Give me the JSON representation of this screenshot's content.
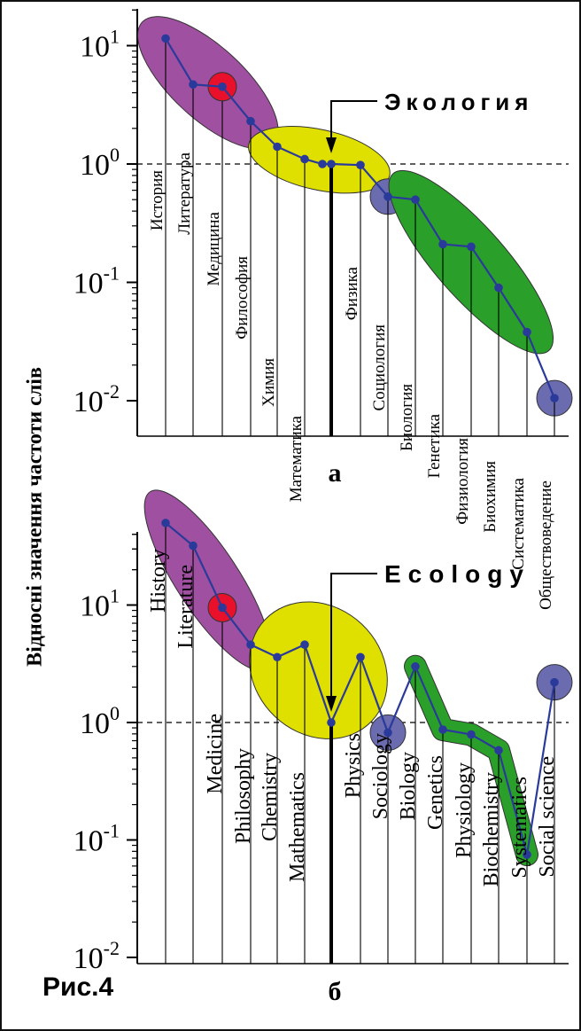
{
  "figure": {
    "caption": "Рис.4",
    "ylabel": "Відносні значення частоти слів"
  },
  "chart_data": [
    {
      "type": "line",
      "panel_label": "а",
      "ylabel": "Відносні значення частоти слів",
      "yscale": "log",
      "ylim": [
        0.0085,
        25
      ],
      "yticks": [
        10,
        1,
        0.1,
        0.01
      ],
      "ytick_labels": [
        {
          "base": "10",
          "exp": "1"
        },
        {
          "base": "10",
          "exp": "0"
        },
        {
          "base": "10",
          "exp": "-1"
        },
        {
          "base": "10",
          "exp": "-2"
        }
      ],
      "reference_line": 1,
      "highlight_label": "Экология",
      "highlight_category": "Экология",
      "categories": [
        "История",
        "Литература",
        "Медицина",
        "Философия",
        "Химия",
        "Математика",
        "",
        "Экология",
        "Физика",
        "Социология",
        "Биология",
        "Генетика",
        "Физиология",
        "Биохимия",
        "Систематика",
        "Обществоведение"
      ],
      "tick_labels": [
        "История",
        "Литература",
        "Медицина",
        "Философия",
        "Химия",
        "Математика",
        "",
        "",
        "Физика",
        "Социология",
        "Биология",
        "Генетика",
        "Физиология",
        "Биохимия",
        "Систематика",
        "Обществоведение"
      ],
      "label_levels": [
        1,
        2,
        3,
        4,
        5,
        6,
        0,
        0,
        8,
        9,
        10,
        11,
        12,
        13,
        14,
        15
      ],
      "values": [
        11.5,
        4.7,
        4.5,
        2.3,
        1.4,
        1.1,
        1.0,
        1.0,
        0.98,
        0.53,
        0.5,
        0.21,
        0.2,
        0.09,
        0.038,
        0.0105
      ],
      "clusters": [
        {
          "color": "#a050a0",
          "members": [
            0,
            1,
            2,
            3
          ]
        },
        {
          "color": "#e0e000",
          "members": [
            4,
            5,
            6,
            7,
            8
          ]
        },
        {
          "color": "#6b6bb0",
          "members": [
            9
          ]
        },
        {
          "color": "#2aa02a",
          "members": [
            10,
            11,
            12,
            13,
            14
          ]
        },
        {
          "color": "#6b6bb0",
          "members": [
            15
          ]
        }
      ],
      "highlight_points": [
        {
          "index": 2,
          "color": "#e8102a"
        }
      ],
      "colors": {
        "line": "#2a3a9a",
        "point": "#2a3a9a"
      }
    },
    {
      "type": "line",
      "panel_label": "б",
      "ylabel": "Відносні значення частоти слів",
      "yscale": "log",
      "ylim": [
        0.0085,
        60
      ],
      "yticks": [
        10,
        1,
        0.1,
        0.01
      ],
      "ytick_labels": [
        {
          "base": "10",
          "exp": "1"
        },
        {
          "base": "10",
          "exp": "0"
        },
        {
          "base": "10",
          "exp": "-1"
        },
        {
          "base": "10",
          "exp": "-2"
        }
      ],
      "reference_line": 1,
      "highlight_label": "Ecology",
      "highlight_category": "Ecology",
      "categories": [
        "History",
        "Literature",
        "Medicine",
        "Philosophy",
        "Chemistry",
        "Mathematics",
        "Ecology",
        "Physics",
        "Sociology",
        "Biology",
        "Genetics",
        "Physiology",
        "Biochemistry",
        "Systematics",
        "Social science"
      ],
      "tick_labels": [
        "History",
        "Literature",
        "Medicine",
        "Philosophy",
        "Chemistry",
        "Mathematics",
        "",
        "Physics",
        "Sociology",
        "Biology",
        "Genetics",
        "Physiology",
        "Biochemistry",
        "Systematics",
        "Social science"
      ],
      "label_levels": [
        1,
        2,
        3,
        4,
        5,
        6,
        0,
        8,
        9,
        10,
        11,
        12,
        13,
        14,
        15
      ],
      "values": [
        50,
        32,
        9.5,
        4.6,
        3.6,
        4.6,
        1.0,
        3.6,
        0.82,
        3.0,
        0.87,
        0.79,
        0.58,
        0.075,
        2.2
      ],
      "clusters": [
        {
          "color": "#a050a0",
          "members": [
            0,
            1,
            2,
            3
          ]
        },
        {
          "color": "#e0e000",
          "members": [
            4,
            5,
            6,
            7
          ]
        },
        {
          "color": "#6b6bb0",
          "members": [
            8
          ]
        },
        {
          "color": "#2aa02a",
          "members": [
            9,
            10,
            11,
            12,
            13
          ],
          "shape": "band"
        },
        {
          "color": "#6b6bb0",
          "members": [
            14
          ]
        }
      ],
      "highlight_points": [
        {
          "index": 2,
          "color": "#e8102a"
        }
      ],
      "colors": {
        "line": "#2a3a9a",
        "point": "#2a3a9a"
      }
    }
  ]
}
